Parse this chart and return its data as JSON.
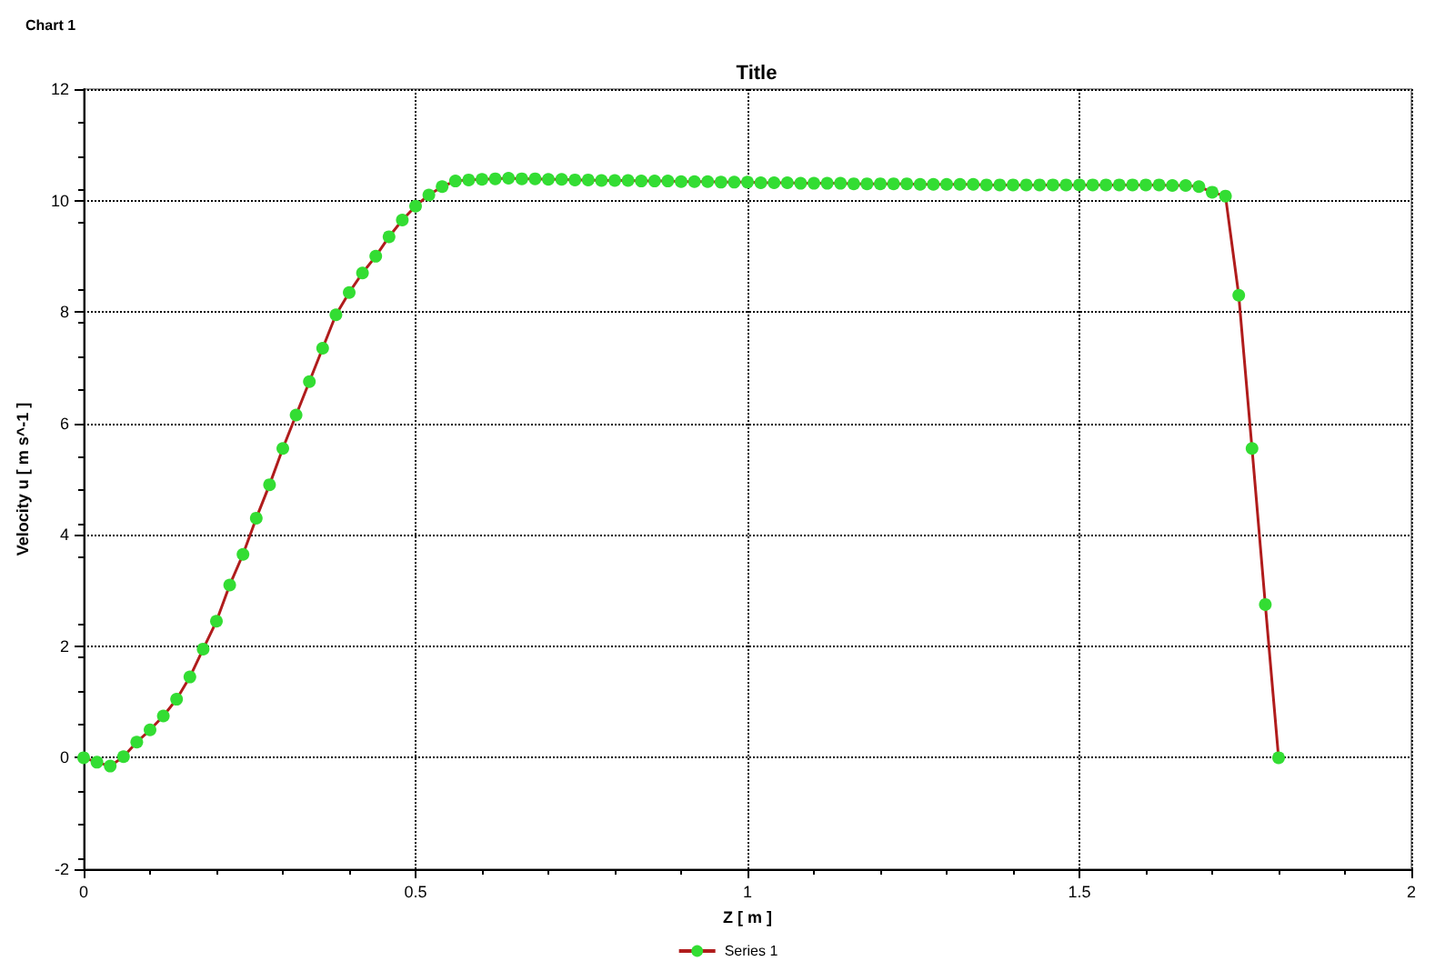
{
  "chart_data": {
    "type": "line",
    "title": "Title",
    "xlabel": "Z [ m ]",
    "ylabel": "Velocity u [ m s^-1 ]",
    "annotations": [
      "Chart 1"
    ],
    "x": [
      0,
      0.02,
      0.04,
      0.06,
      0.08,
      0.1,
      0.12,
      0.14,
      0.16,
      0.18,
      0.2,
      0.22,
      0.24,
      0.26,
      0.28,
      0.3,
      0.32,
      0.34,
      0.36,
      0.38,
      0.4,
      0.42,
      0.44,
      0.46,
      0.48,
      0.5,
      0.52,
      0.54,
      0.56,
      0.58,
      0.6,
      0.62,
      0.64,
      0.66,
      0.68,
      0.7,
      0.72,
      0.74,
      0.76,
      0.78,
      0.8,
      0.82,
      0.84,
      0.86,
      0.88,
      0.9,
      0.92,
      0.94,
      0.96,
      0.98,
      1,
      1.02,
      1.04,
      1.06,
      1.08,
      1.1,
      1.12,
      1.14,
      1.16,
      1.18,
      1.2,
      1.22,
      1.24,
      1.26,
      1.28,
      1.3,
      1.32,
      1.34,
      1.36,
      1.38,
      1.4,
      1.42,
      1.44,
      1.46,
      1.48,
      1.5,
      1.52,
      1.54,
      1.56,
      1.58,
      1.6,
      1.62,
      1.64,
      1.66,
      1.68,
      1.7,
      1.72,
      1.74,
      1.76,
      1.78,
      1.8
    ],
    "series": [
      {
        "name": "Series 1",
        "color": "#33dd33",
        "values": [
          0,
          -0.08,
          -0.15,
          0.02,
          0.28,
          0.5,
          0.75,
          1.05,
          1.45,
          1.95,
          2.45,
          3.1,
          3.65,
          4.3,
          4.9,
          5.55,
          6.15,
          6.75,
          7.35,
          7.95,
          8.35,
          8.7,
          9.0,
          9.35,
          9.65,
          9.9,
          10.1,
          10.25,
          10.35,
          10.37,
          10.38,
          10.39,
          10.4,
          10.39,
          10.39,
          10.38,
          10.38,
          10.37,
          10.37,
          10.36,
          10.36,
          10.36,
          10.35,
          10.35,
          10.35,
          10.34,
          10.34,
          10.34,
          10.33,
          10.33,
          10.33,
          10.32,
          10.32,
          10.32,
          10.31,
          10.31,
          10.31,
          10.31,
          10.3,
          10.3,
          10.3,
          10.3,
          10.3,
          10.29,
          10.29,
          10.29,
          10.29,
          10.29,
          10.28,
          10.28,
          10.28,
          10.28,
          10.28,
          10.28,
          10.28,
          10.28,
          10.28,
          10.28,
          10.28,
          10.28,
          10.28,
          10.28,
          10.27,
          10.27,
          10.25,
          10.15,
          10.08,
          8.3,
          5.55,
          2.75,
          0
        ]
      }
    ],
    "xlim": [
      0,
      2
    ],
    "xticks": [
      0,
      0.5,
      1,
      1.5,
      2
    ],
    "ylim": [
      -2,
      12
    ],
    "yticks": [
      -2,
      0,
      2,
      4,
      6,
      8,
      10,
      12
    ],
    "grid": true,
    "legend": "bottom",
    "marker": "circle",
    "line_style": "solid"
  }
}
